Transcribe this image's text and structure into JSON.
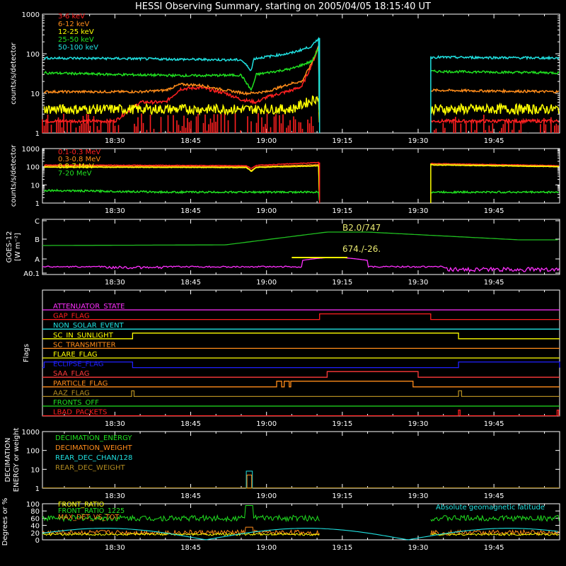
{
  "title": "HESSI Observing Summary, starting on 2005/04/05 18:15:40 UT",
  "time_ticks": [
    "18:30",
    "18:45",
    "19:00",
    "19:15",
    "19:30",
    "19:45"
  ],
  "chart_data": [
    {
      "id": "lowE",
      "type": "line",
      "ylabel": "counts/s/detector",
      "yscale": "log",
      "ylim": [
        1,
        1000
      ],
      "yticks": [
        "1",
        "10",
        "100",
        "1000"
      ],
      "legend": [
        {
          "name": "3-6 keV",
          "color": "#ff2020"
        },
        {
          "name": "6-12 keV",
          "color": "#ff8c1a"
        },
        {
          "name": "12-25 keV",
          "color": "#ffff00"
        },
        {
          "name": "25-50 keV",
          "color": "#20e020"
        },
        {
          "name": "50-100 keV",
          "color": "#20e0e0"
        }
      ],
      "series": [
        {
          "name": "3-6 keV",
          "color": "#ff2020",
          "points": [
            [
              "18:16",
              2
            ],
            [
              "18:30",
              2
            ],
            [
              "18:35",
              6
            ],
            [
              "18:40",
              6
            ],
            [
              "18:43",
              13
            ],
            [
              "18:47",
              14
            ],
            [
              "18:52",
              10
            ],
            [
              "18:55",
              7
            ],
            [
              "18:58",
              6
            ],
            [
              "19:00",
              8
            ],
            [
              "19:05",
              12
            ],
            [
              "19:07",
              15
            ],
            [
              "19:09",
              55
            ],
            [
              "19:10.3",
              140
            ],
            [
              "19:10.5",
              1
            ]
          ],
          "gap": [
            [
              "19:10.5",
              null
            ],
            [
              "19:32.5",
              null
            ]
          ],
          "after": [
            [
              "19:32.5",
              2
            ],
            [
              "19:58",
              2
            ]
          ]
        },
        {
          "name": "6-12 keV",
          "color": "#ff8c1a",
          "points": [
            [
              "18:16",
              11
            ],
            [
              "18:35",
              11
            ],
            [
              "18:40",
              12
            ],
            [
              "18:43",
              17
            ],
            [
              "18:47",
              16
            ],
            [
              "18:52",
              12
            ],
            [
              "18:56",
              10
            ],
            [
              "19:00",
              11
            ],
            [
              "19:05",
              18
            ],
            [
              "19:07",
              20
            ],
            [
              "19:09",
              60
            ],
            [
              "19:10.3",
              160
            ],
            [
              "19:10.5",
              1
            ]
          ],
          "after": [
            [
              "19:32.5",
              12
            ],
            [
              "19:58",
              11
            ]
          ]
        },
        {
          "name": "12-25 keV",
          "color": "#ffff00",
          "points": [
            [
              "18:16",
              4
            ],
            [
              "18:43",
              4
            ],
            [
              "18:56",
              4
            ],
            [
              "19:05",
              4
            ],
            [
              "19:10.3",
              8
            ],
            [
              "19:10.5",
              1
            ]
          ],
          "after": [
            [
              "19:32.5",
              4
            ],
            [
              "19:58",
              4
            ]
          ]
        },
        {
          "name": "25-50 keV",
          "color": "#20e020",
          "points": [
            [
              "18:16",
              33
            ],
            [
              "18:30",
              30
            ],
            [
              "18:45",
              28
            ],
            [
              "18:55",
              29
            ],
            [
              "18:57",
              12
            ],
            [
              "18:58",
              30
            ],
            [
              "19:05",
              42
            ],
            [
              "19:09",
              65
            ],
            [
              "19:10.3",
              140
            ],
            [
              "19:10.5",
              1
            ]
          ],
          "after": [
            [
              "19:32.5",
              36
            ],
            [
              "19:58",
              33
            ]
          ]
        },
        {
          "name": "50-100 keV",
          "color": "#20e0e0",
          "points": [
            [
              "18:16",
              78
            ],
            [
              "18:30",
              76
            ],
            [
              "18:45",
              72
            ],
            [
              "18:55",
              70
            ],
            [
              "18:57",
              38
            ],
            [
              "18:57.5",
              75
            ],
            [
              "19:05",
              105
            ],
            [
              "19:09",
              155
            ],
            [
              "19:10.3",
              250
            ],
            [
              "19:10.5",
              1
            ]
          ],
          "after": [
            [
              "19:32.5",
              82
            ],
            [
              "19:58",
              78
            ]
          ]
        }
      ]
    },
    {
      "id": "highE",
      "type": "line",
      "ylabel": "counts/s/detector",
      "yscale": "log",
      "ylim": [
        1,
        1000
      ],
      "yticks": [
        "1",
        "10",
        "100",
        "1000"
      ],
      "legend": [
        {
          "name": "0.1-0.3 MeV",
          "color": "#ff2020"
        },
        {
          "name": "0.3-0.8 MeV",
          "color": "#ff8c1a"
        },
        {
          "name": "0.8-7 MeV",
          "color": "#ffff00"
        },
        {
          "name": "7-20 MeV",
          "color": "#20e020"
        }
      ],
      "series": [
        {
          "name": "0.1-0.3 MeV",
          "color": "#ff2020",
          "points": [
            [
              "18:16",
              125
            ],
            [
              "18:56",
              115
            ],
            [
              "18:57",
              80
            ],
            [
              "18:58",
              120
            ],
            [
              "19:10.3",
              170
            ],
            [
              "19:10.5",
              1
            ]
          ],
          "after": [
            [
              "19:32.5",
              150
            ],
            [
              "19:58",
              115
            ]
          ]
        },
        {
          "name": "0.3-0.8 MeV",
          "color": "#ff8c1a",
          "points": [
            [
              "18:16",
              110
            ],
            [
              "18:56",
              100
            ],
            [
              "18:57",
              60
            ],
            [
              "18:58",
              100
            ],
            [
              "19:10.3",
              130
            ],
            [
              "19:10.5",
              1
            ]
          ],
          "after": [
            [
              "19:32.5",
              140
            ],
            [
              "19:58",
              108
            ]
          ]
        },
        {
          "name": "0.8-7 MeV",
          "color": "#ffff00",
          "points": [
            [
              "18:16",
              95
            ],
            [
              "18:56",
              90
            ],
            [
              "18:57",
              55
            ],
            [
              "18:58",
              92
            ],
            [
              "19:10.3",
              110
            ],
            [
              "19:10.5",
              1
            ]
          ],
          "after": [
            [
              "19:32.5",
              125
            ],
            [
              "19:58",
              100
            ]
          ]
        },
        {
          "name": "7-20 MeV",
          "color": "#20e020",
          "points": [
            [
              "18:16",
              5
            ],
            [
              "18:40",
              4
            ],
            [
              "19:00",
              4
            ],
            [
              "19:10.3",
              4
            ],
            [
              "19:10.5",
              1
            ]
          ],
          "after": [
            [
              "19:32.5",
              4
            ],
            [
              "19:58",
              4
            ]
          ]
        }
      ]
    },
    {
      "id": "goes",
      "type": "line",
      "ylabel": "GOES-12",
      "ylabel2": "[W m⁻²]",
      "yticks": [
        "A0.1",
        "A",
        "B",
        "C"
      ],
      "annotations": [
        {
          "text": "B2.0/747",
          "color": "#e8e870"
        },
        {
          "text": "674./-26.",
          "color": "#e8e870"
        }
      ],
      "series": [
        {
          "name": "GOES long",
          "color": "#20c020"
        },
        {
          "name": "GOES short",
          "color": "#ff30ff"
        }
      ]
    },
    {
      "id": "flags",
      "type": "flags",
      "ylabel": "Flags",
      "flags": [
        {
          "name": "ATTENUATOR_STATE",
          "color": "#ff30ff"
        },
        {
          "name": "GAP_FLAG",
          "color": "#ff2020"
        },
        {
          "name": "NON_SOLAR_EVENT",
          "color": "#20e0e0"
        },
        {
          "name": "SC_IN_SUNLIGHT",
          "color": "#ffff00"
        },
        {
          "name": "SC_TRANSMITTER",
          "color": "#ff8c1a"
        },
        {
          "name": "FLARE_FLAG",
          "color": "#ffff00"
        },
        {
          "name": "ECLIPSE_FLAG",
          "color": "#2020ff"
        },
        {
          "name": "SAA_FLAG",
          "color": "#ff3a3a"
        },
        {
          "name": "PARTICLE_FLAG",
          "color": "#ff8c1a"
        },
        {
          "name": "AAZ_FLAG",
          "color": "#b08a20"
        },
        {
          "name": "FRONTS_OFF",
          "color": "#20e020"
        },
        {
          "name": "LBAD_PACKETS",
          "color": "#ff2020"
        }
      ]
    },
    {
      "id": "decim",
      "type": "line",
      "ylabel": "DECIMATION",
      "ylabel2": "ENERGY or weight",
      "yscale": "log",
      "yticks": [
        "1",
        "10",
        "100",
        "1000"
      ],
      "legend": [
        {
          "name": "DECIMATION_ENERGY",
          "color": "#20e020"
        },
        {
          "name": "DECIMATION_WEIGHT",
          "color": "#ff8c1a"
        },
        {
          "name": "REAR_DEC_CHAN/128",
          "color": "#20e0e0"
        },
        {
          "name": "REAR_DEC_WEIGHT",
          "color": "#b08a20"
        }
      ]
    },
    {
      "id": "ratio",
      "type": "line",
      "ylabel": "Degrees or %",
      "ylim": [
        0,
        100
      ],
      "yticks": [
        "0",
        "20",
        "40",
        "60",
        "80",
        "100"
      ],
      "legend": [
        {
          "name": "FRONT_RATIO",
          "color": "#ffff00"
        },
        {
          "name": "FRONT_RATIO_1225",
          "color": "#20e020"
        },
        {
          "name": "MAX_DET_VS_TOT",
          "color": "#ff8c1a"
        }
      ],
      "right_legend": {
        "name": "Absolute geomagnetic latitude",
        "color": "#20e0e0"
      }
    }
  ]
}
